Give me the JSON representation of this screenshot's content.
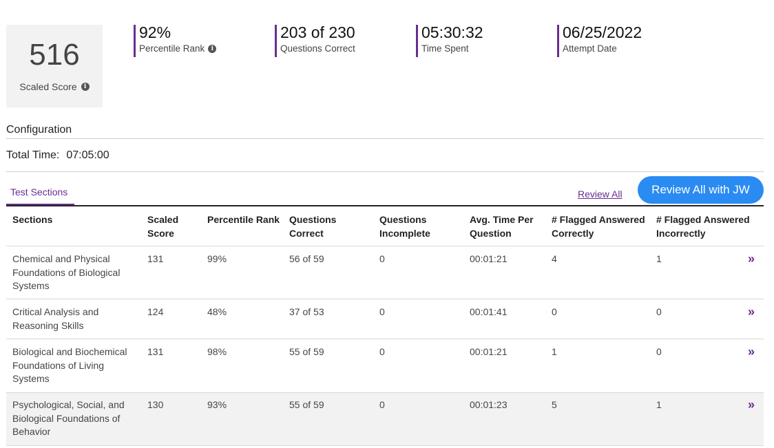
{
  "summary": {
    "scaled_score": "516",
    "scaled_score_label": "Scaled Score",
    "stats": [
      {
        "value": "92%",
        "label": "Percentile Rank"
      },
      {
        "value": "203 of 230",
        "label": "Questions Correct"
      },
      {
        "value": "05:30:32",
        "label": "Time Spent"
      },
      {
        "value": "06/25/2022",
        "label": "Attempt Date"
      }
    ],
    "info_icon": "info-circle-icon"
  },
  "configuration": {
    "title": "Configuration",
    "total_time_label": "Total Time:",
    "total_time_value": "07:05:00"
  },
  "tabs": {
    "test_sections": "Test Sections",
    "review_all": "Review All",
    "review_all_jw": "Review All with JW"
  },
  "table": {
    "headers": [
      "Sections",
      "Scaled Score",
      "Percentile Rank",
      "Questions Correct",
      "Questions Incomplete",
      "Avg. Time Per Question",
      "# Flagged Answered Correctly",
      "# Flagged Answered Incorrectly"
    ],
    "rows": [
      [
        "Chemical and Physical Foundations of Biological Systems",
        "131",
        "99%",
        "56 of 59",
        "0",
        "00:01:21",
        "4",
        "1"
      ],
      [
        "Critical Analysis and Reasoning Skills",
        "124",
        "48%",
        "37 of 53",
        "0",
        "00:01:41",
        "0",
        "0"
      ],
      [
        "Biological and Biochemical Foundations of Living Systems",
        "131",
        "98%",
        "55 of 59",
        "0",
        "00:01:21",
        "1",
        "0"
      ],
      [
        "Psychological, Social, and Biological Foundations of Behavior",
        "130",
        "93%",
        "55 of 59",
        "0",
        "00:01:23",
        "5",
        "1"
      ]
    ],
    "row_action_icon": "double-chevron-right-icon",
    "row_action_glyph": "»"
  },
  "colors": {
    "accent": "#6a2c91",
    "button": "#2a8bf2"
  }
}
